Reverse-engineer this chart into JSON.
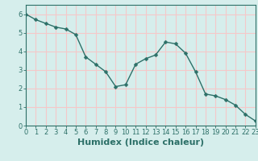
{
  "x": [
    0,
    1,
    2,
    3,
    4,
    5,
    6,
    7,
    8,
    9,
    10,
    11,
    12,
    13,
    14,
    15,
    16,
    17,
    18,
    19,
    20,
    21,
    22,
    23
  ],
  "y": [
    6.0,
    5.7,
    5.5,
    5.3,
    5.2,
    4.9,
    3.7,
    3.3,
    2.9,
    2.1,
    2.2,
    3.3,
    3.6,
    3.8,
    4.5,
    4.4,
    3.9,
    2.9,
    1.7,
    1.6,
    1.4,
    1.1,
    0.6,
    0.25
  ],
  "line_color": "#2d7068",
  "marker": "D",
  "marker_size": 2.5,
  "xlabel": "Humidex (Indice chaleur)",
  "xlim": [
    0,
    23
  ],
  "ylim": [
    0,
    6.5
  ],
  "xtick_labels": [
    "0",
    "1",
    "2",
    "3",
    "4",
    "5",
    "6",
    "7",
    "8",
    "9",
    "10",
    "11",
    "12",
    "13",
    "14",
    "15",
    "16",
    "17",
    "18",
    "19",
    "20",
    "21",
    "22",
    "23"
  ],
  "ytick_values": [
    0,
    1,
    2,
    3,
    4,
    5,
    6
  ],
  "background_color": "#d6eeec",
  "grid_color": "#f5c8c8",
  "axes_color": "#2d7068",
  "tick_fontsize": 6,
  "xlabel_fontsize": 8
}
